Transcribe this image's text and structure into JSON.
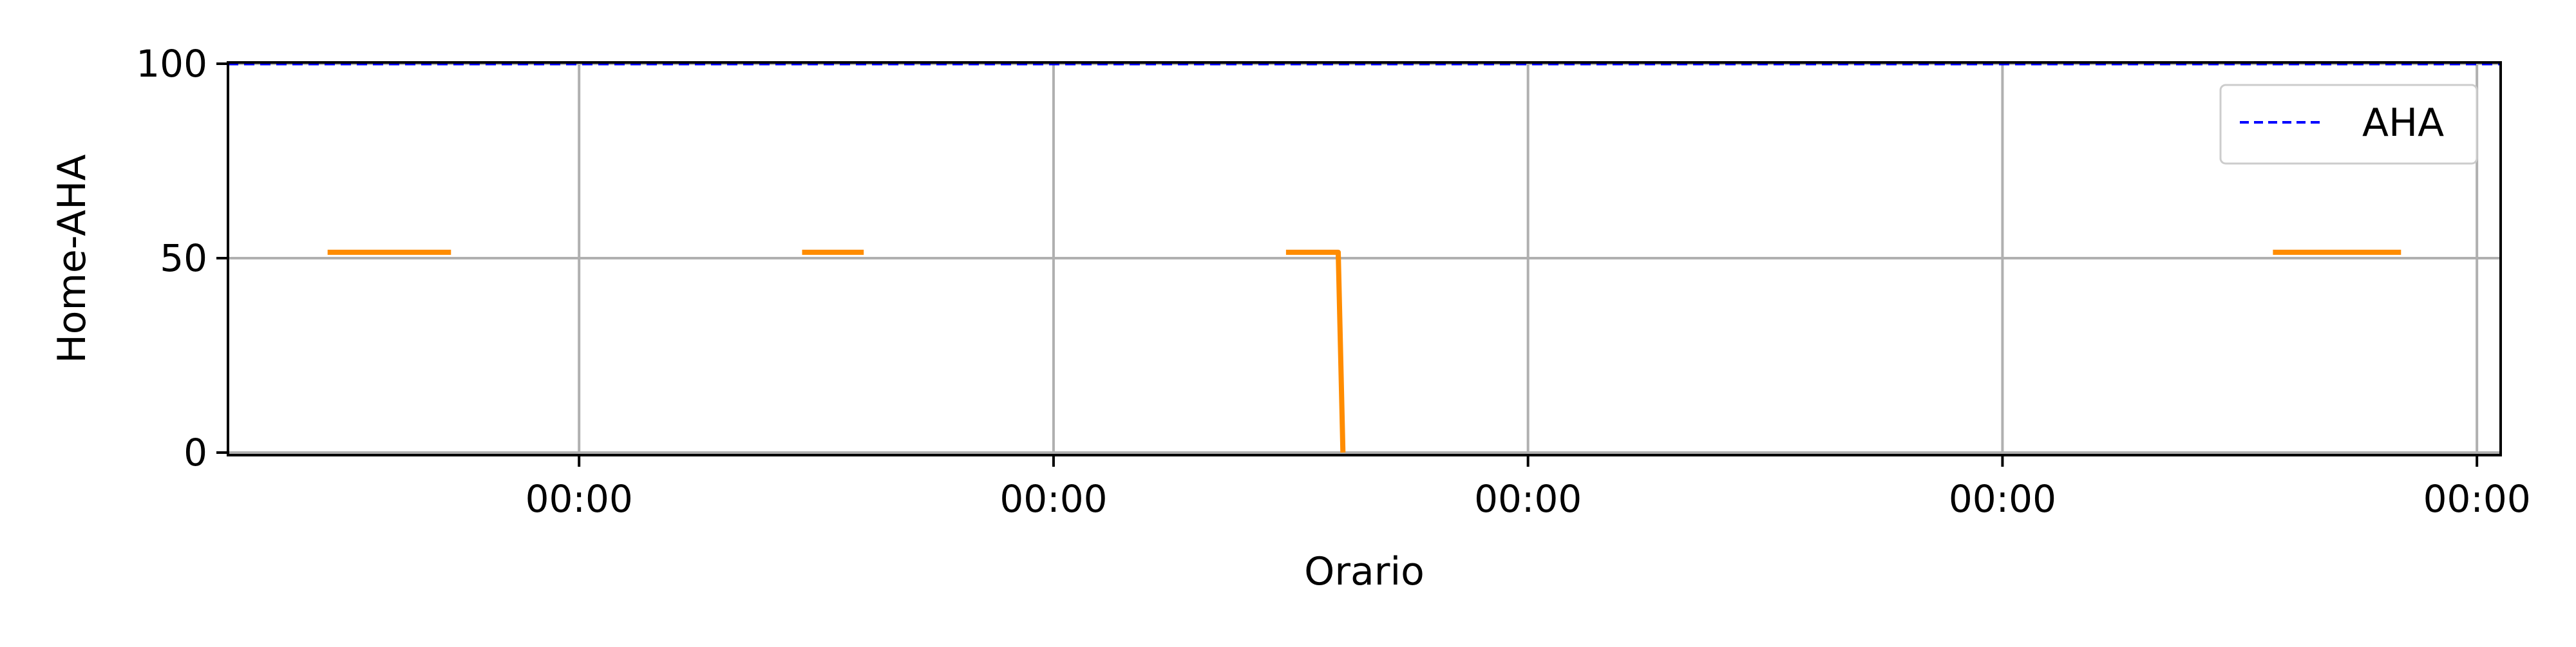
{
  "chart_data": {
    "type": "line",
    "title": "",
    "xlabel": "Orario",
    "ylabel": "Home-AHA",
    "ylim": [
      0,
      100
    ],
    "y_ticks": [
      0,
      50,
      100
    ],
    "x_tick_labels": [
      "00:00",
      "00:00",
      "00:00",
      "00:00",
      "00:00"
    ],
    "x_range_days": [
      -0.74,
      4.05
    ],
    "grid": true,
    "legend": {
      "placement": "upper-right",
      "entries": [
        "AHA"
      ]
    },
    "series": [
      {
        "name": "AHA",
        "style": "dashed",
        "color": "#0000ff",
        "segments": [
          [
            [
              -0.74,
              100
            ],
            [
              4.05,
              100
            ]
          ]
        ]
      },
      {
        "style": "solid",
        "color": "#ff8c00",
        "segments": [
          [
            [
              -0.53,
              51.5
            ],
            [
              -0.27,
              51.5
            ]
          ],
          [
            [
              0.47,
              51.5
            ],
            [
              0.6,
              51.5
            ]
          ],
          [
            [
              1.49,
              51.5
            ],
            [
              1.6,
              51.5
            ],
            [
              1.61,
              0
            ]
          ],
          [
            [
              3.57,
              51.5
            ],
            [
              3.84,
              51.5
            ]
          ]
        ]
      }
    ]
  }
}
